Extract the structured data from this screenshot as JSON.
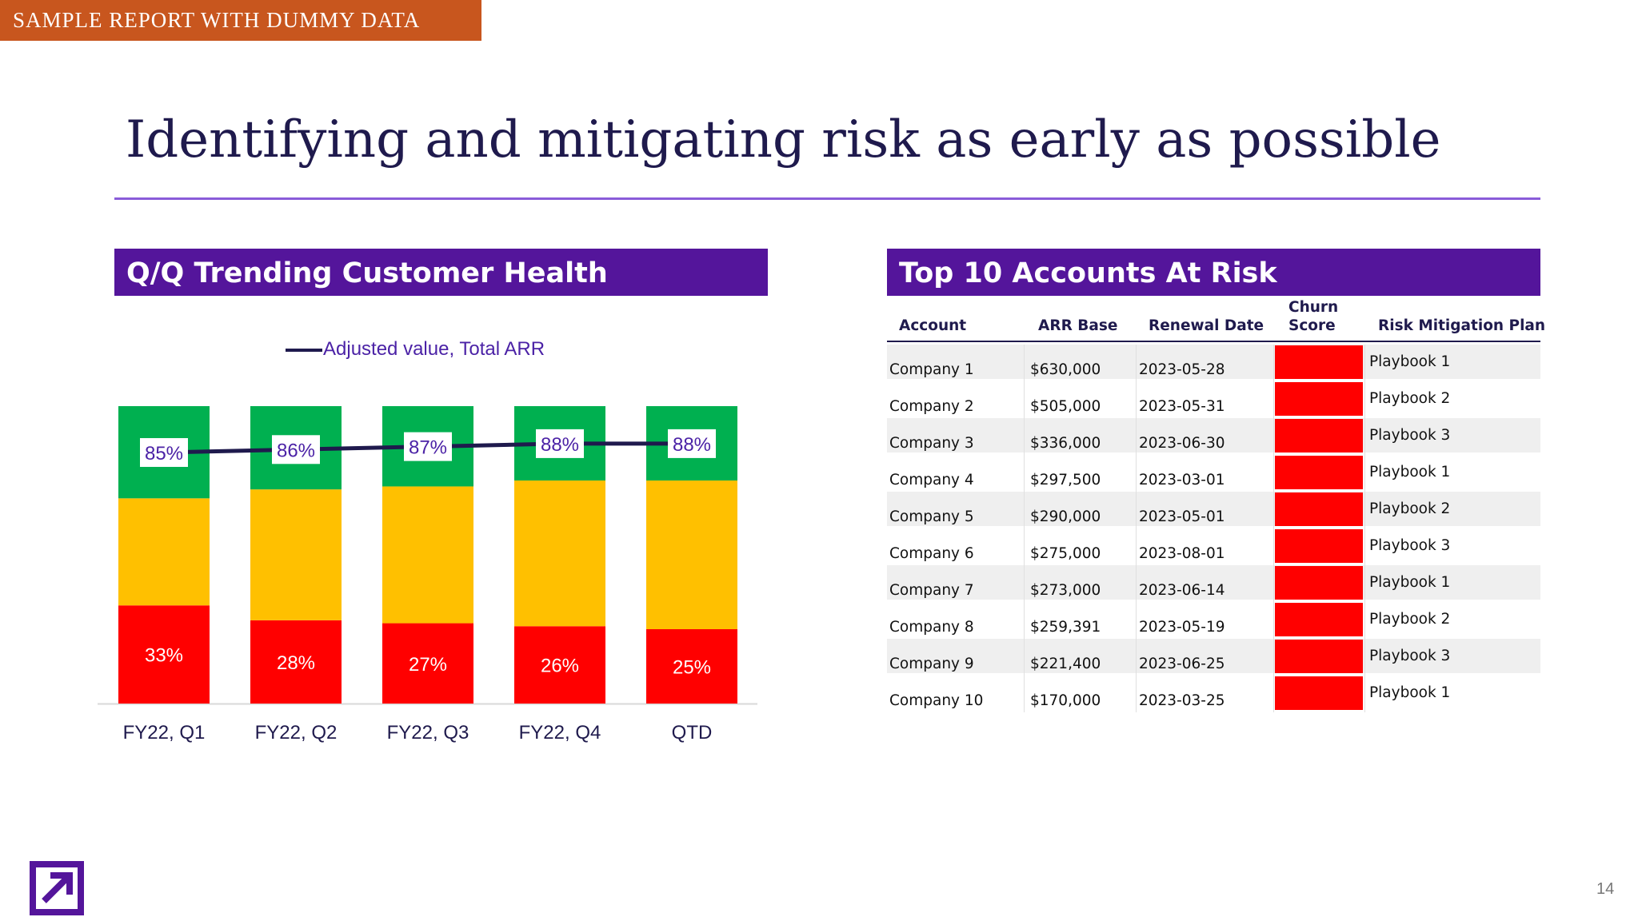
{
  "banner": "SAMPLE REPORT WITH DUMMY DATA",
  "title": "Identifying and mitigating risk as early as possible",
  "page_number": "14",
  "left_panel": {
    "header": "Q/Q Trending Customer Health",
    "legend": "Adjusted value, Total ARR"
  },
  "right_panel": {
    "header": "Top 10 Accounts At Risk",
    "columns": [
      "Account",
      "ARR Base",
      "Renewal Date",
      "Churn",
      "Score",
      "Risk Mitigation Plan"
    ],
    "rows": [
      {
        "account": "Company 1",
        "arr": "$630,000",
        "renewal": "2023-05-28",
        "plan": "Playbook 1"
      },
      {
        "account": "Company 2",
        "arr": "$505,000",
        "renewal": "2023-05-31",
        "plan": "Playbook 2"
      },
      {
        "account": "Company 3",
        "arr": "$336,000",
        "renewal": "2023-06-30",
        "plan": "Playbook 3"
      },
      {
        "account": "Company 4",
        "arr": "$297,500",
        "renewal": "2023-03-01",
        "plan": "Playbook 1"
      },
      {
        "account": "Company 5",
        "arr": "$290,000",
        "renewal": "2023-05-01",
        "plan": "Playbook 2"
      },
      {
        "account": "Company 6",
        "arr": "$275,000",
        "renewal": "2023-08-01",
        "plan": "Playbook 3"
      },
      {
        "account": "Company 7",
        "arr": "$273,000",
        "renewal": "2023-06-14",
        "plan": "Playbook 1"
      },
      {
        "account": "Company 8",
        "arr": "$259,391",
        "renewal": "2023-05-19",
        "plan": "Playbook 2"
      },
      {
        "account": "Company 9",
        "arr": "$221,400",
        "renewal": "2023-06-25",
        "plan": "Playbook 3"
      },
      {
        "account": "Company 10",
        "arr": "$170,000",
        "renewal": "2023-03-25",
        "plan": "Playbook 1"
      }
    ],
    "churn_color": "#ff0000"
  },
  "colors": {
    "red": "#ff0000",
    "yellow": "#ffc000",
    "green": "#00b050",
    "line": "#1f1a4d",
    "purple": "#54159b"
  },
  "chart_data": {
    "type": "bar",
    "stacked": true,
    "normalized": true,
    "categories": [
      "FY22, Q1",
      "FY22, Q2",
      "FY22, Q3",
      "FY22, Q4",
      "QTD"
    ],
    "series": [
      {
        "color": "#ff0000",
        "values": [
          33,
          28,
          27,
          26,
          25
        ],
        "labels": [
          "33%",
          "28%",
          "27%",
          "26%",
          "25%"
        ]
      },
      {
        "color": "#ffc000",
        "values": [
          36,
          44,
          46,
          49,
          50
        ]
      },
      {
        "color": "#00b050",
        "values": [
          31,
          28,
          27,
          25,
          25
        ]
      },
      {
        "name": "Adjusted value, Total ARR",
        "type": "line",
        "values": [
          85,
          86,
          87,
          88,
          88
        ],
        "labels": [
          "85%",
          "86%",
          "87%",
          "88%",
          "88%"
        ]
      }
    ],
    "ylim": [
      0,
      100
    ],
    "grid": false,
    "legend": "top"
  }
}
